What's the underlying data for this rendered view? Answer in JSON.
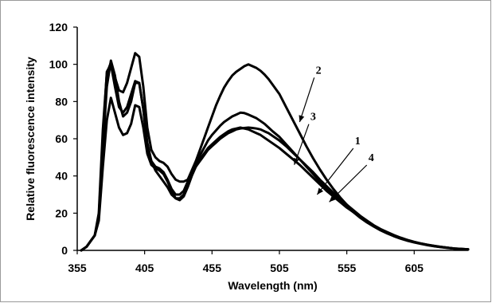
{
  "chart_data": {
    "type": "line",
    "xlabel": "Wavelength (nm)",
    "ylabel": "Relative fluorescence intensity",
    "xlim": [
      355,
      645
    ],
    "ylim": [
      0,
      120
    ],
    "xticks": [
      355,
      405,
      455,
      505,
      555,
      605
    ],
    "yticks": [
      0,
      20,
      40,
      60,
      80,
      100,
      120
    ],
    "grid": false,
    "legend": "inline numbered labels with arrows",
    "line_color": "#000000",
    "series": [
      {
        "name": "1",
        "x": [
          358,
          362,
          365,
          368,
          371,
          374,
          377,
          380,
          383,
          386,
          389,
          392,
          395,
          398,
          401,
          404,
          407,
          410,
          413,
          416,
          419,
          422,
          425,
          428,
          431,
          434,
          437,
          440,
          443,
          446,
          449,
          452,
          455,
          458,
          461,
          464,
          467,
          470,
          473,
          476,
          479,
          482,
          485,
          488,
          491,
          494,
          497,
          500,
          505,
          510,
          515,
          520,
          525,
          530,
          535,
          540,
          545,
          550,
          555,
          560,
          565,
          570,
          575,
          580,
          585,
          590,
          595,
          600,
          605,
          610,
          615,
          620,
          625,
          630,
          635,
          640,
          645
        ],
        "y": [
          0,
          2,
          5,
          8,
          18,
          55,
          88,
          102,
          94,
          80,
          72,
          74,
          80,
          90,
          90,
          76,
          56,
          48,
          45,
          44,
          42,
          38,
          33,
          30,
          30,
          32,
          37,
          42,
          45,
          48,
          51,
          54,
          56,
          58,
          60,
          61.5,
          63,
          64,
          65,
          65.5,
          65.8,
          66,
          65.8,
          65.5,
          65,
          64,
          63,
          61.5,
          59,
          56,
          52.5,
          49,
          45.5,
          42,
          38,
          34.5,
          31,
          28,
          24.5,
          21.5,
          18.5,
          16,
          13.5,
          11.5,
          9.8,
          8.2,
          6.8,
          5.6,
          4.6,
          3.7,
          2.9,
          2.3,
          1.8,
          1.4,
          1,
          0.8,
          0.5
        ]
      },
      {
        "name": "2",
        "x": [
          358,
          362,
          365,
          368,
          371,
          374,
          377,
          380,
          383,
          386,
          389,
          392,
          395,
          398,
          401,
          404,
          407,
          410,
          413,
          416,
          419,
          422,
          425,
          428,
          431,
          434,
          437,
          440,
          443,
          446,
          449,
          452,
          455,
          458,
          461,
          464,
          467,
          470,
          473,
          476,
          479,
          482,
          485,
          488,
          491,
          494,
          497,
          500,
          505,
          510,
          515,
          520,
          525,
          530,
          535,
          540,
          545,
          550,
          555,
          560,
          565,
          570,
          575,
          580,
          585,
          590,
          595,
          600,
          605,
          610,
          615,
          620,
          625,
          630,
          635,
          640,
          645
        ],
        "y": [
          0,
          2,
          5,
          8,
          20,
          65,
          95,
          101,
          93,
          86,
          85,
          90,
          98,
          106,
          104,
          88,
          66,
          54,
          50,
          48,
          47,
          45,
          41,
          38,
          37,
          37,
          38,
          43,
          48,
          54,
          60,
          66,
          72,
          78,
          83,
          87.5,
          91,
          94,
          96,
          97.5,
          99,
          100,
          99,
          98,
          96.5,
          94.5,
          92,
          89,
          84,
          77,
          70,
          63,
          56,
          49.5,
          43.5,
          38,
          33,
          28.5,
          24.5,
          21,
          18,
          15.5,
          13,
          11,
          9.3,
          7.8,
          6.5,
          5.4,
          4.4,
          3.6,
          2.9,
          2.3,
          1.8,
          1.4,
          1,
          0.8,
          0.5
        ]
      },
      {
        "name": "3",
        "x": [
          358,
          362,
          365,
          368,
          371,
          374,
          377,
          380,
          383,
          386,
          389,
          392,
          395,
          398,
          401,
          404,
          407,
          410,
          413,
          416,
          419,
          422,
          425,
          428,
          431,
          434,
          437,
          440,
          443,
          446,
          449,
          452,
          455,
          458,
          461,
          464,
          467,
          470,
          473,
          476,
          479,
          482,
          485,
          488,
          491,
          494,
          497,
          500,
          505,
          510,
          515,
          520,
          525,
          530,
          535,
          540,
          545,
          550,
          555,
          560,
          565,
          570,
          575,
          580,
          585,
          590,
          595,
          600,
          605,
          610,
          615,
          620,
          625,
          630,
          635,
          640,
          645
        ],
        "y": [
          0,
          2,
          5,
          8,
          18,
          60,
          96,
          100,
          88,
          77,
          74,
          77,
          84,
          91,
          90,
          76,
          58,
          48,
          43,
          40,
          37,
          34,
          30,
          28,
          28,
          30,
          35,
          41,
          46,
          51,
          55,
          59,
          62,
          64.5,
          67,
          69,
          70.5,
          72,
          73,
          74,
          73.8,
          73,
          72,
          71,
          69.5,
          68,
          66,
          64,
          61,
          57,
          53,
          49,
          45,
          41,
          37,
          33.5,
          30,
          26.5,
          23.5,
          20.5,
          17.5,
          15,
          12.8,
          10.8,
          9.1,
          7.6,
          6.3,
          5.2,
          4.3,
          3.5,
          2.8,
          2.2,
          1.7,
          1.3,
          1,
          0.7,
          0.5
        ]
      },
      {
        "name": "4",
        "x": [
          358,
          362,
          365,
          368,
          371,
          374,
          377,
          380,
          383,
          386,
          389,
          392,
          395,
          398,
          401,
          404,
          407,
          410,
          413,
          416,
          419,
          422,
          425,
          428,
          431,
          434,
          437,
          440,
          443,
          446,
          449,
          452,
          455,
          458,
          461,
          464,
          467,
          470,
          473,
          476,
          479,
          482,
          485,
          488,
          491,
          494,
          497,
          500,
          505,
          510,
          515,
          520,
          525,
          530,
          535,
          540,
          545,
          550,
          555,
          560,
          565,
          570,
          575,
          580,
          585,
          590,
          595,
          600,
          605,
          610,
          615,
          620,
          625,
          630,
          635,
          640,
          645
        ],
        "y": [
          0,
          2,
          5,
          8,
          16,
          45,
          70,
          82,
          74,
          66,
          62,
          63,
          68,
          78,
          77,
          66,
          52,
          46,
          44,
          43,
          41,
          37,
          32,
          28,
          27,
          29,
          34,
          40,
          45,
          49,
          52,
          55,
          57,
          59,
          61,
          62.5,
          64,
          65,
          65.5,
          66,
          65.5,
          65,
          64,
          63,
          62,
          60.5,
          59,
          57.5,
          55,
          52,
          49,
          46,
          42.5,
          39,
          35.5,
          32,
          29,
          26,
          23,
          20.5,
          18,
          15.5,
          13.2,
          11.3,
          9.6,
          8,
          6.7,
          5.5,
          4.5,
          3.7,
          3,
          2.4,
          1.9,
          1.4,
          1,
          0.7,
          0.5
        ]
      }
    ],
    "series_labels": [
      {
        "name": "2",
        "x": 532,
        "y": 95,
        "arrow_to_x": 520,
        "arrow_to_y": 69
      },
      {
        "name": "3",
        "x": 528,
        "y": 70,
        "arrow_to_x": 516,
        "arrow_to_y": 46
      },
      {
        "name": "1",
        "x": 561,
        "y": 57,
        "arrow_to_x": 533,
        "arrow_to_y": 30
      },
      {
        "name": "4",
        "x": 571,
        "y": 48,
        "arrow_to_x": 542,
        "arrow_to_y": 26
      }
    ]
  }
}
